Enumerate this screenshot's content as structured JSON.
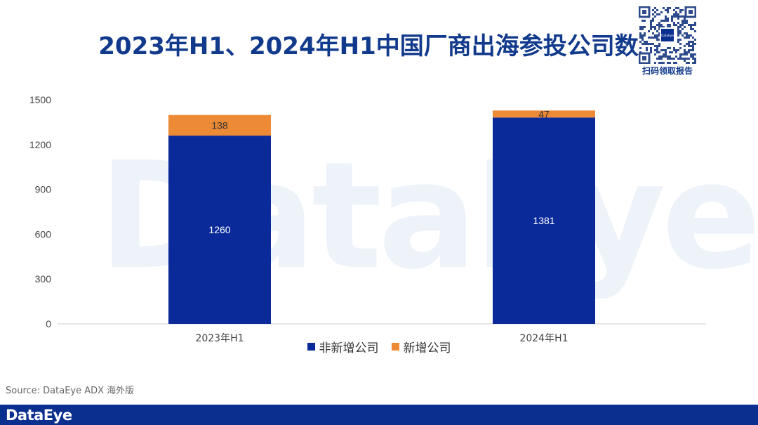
{
  "title": "2023年H1、2024年H1中国厂商出海参投公司数",
  "qr": {
    "caption": "扫码领取报告",
    "center_label": "DataEye"
  },
  "watermark": "DataEye",
  "source": "Source: DataEye ADX 海外版",
  "footer": {
    "logo": "DataEye"
  },
  "colors": {
    "non_new": "#0b2a9a",
    "new": "#ed8a35",
    "title": "#123a8c",
    "footer": "#0b2f8f"
  },
  "chart_data": {
    "type": "bar",
    "stacked": true,
    "categories": [
      "2023年H1",
      "2024年H1"
    ],
    "series": [
      {
        "name": "非新增公司",
        "values": [
          1260,
          1381
        ]
      },
      {
        "name": "新增公司",
        "values": [
          138,
          47
        ]
      }
    ],
    "yticks": [
      "0",
      "300",
      "600",
      "900",
      "1200",
      "1500"
    ],
    "ylim": [
      0,
      1500
    ],
    "legend": "bottom"
  }
}
